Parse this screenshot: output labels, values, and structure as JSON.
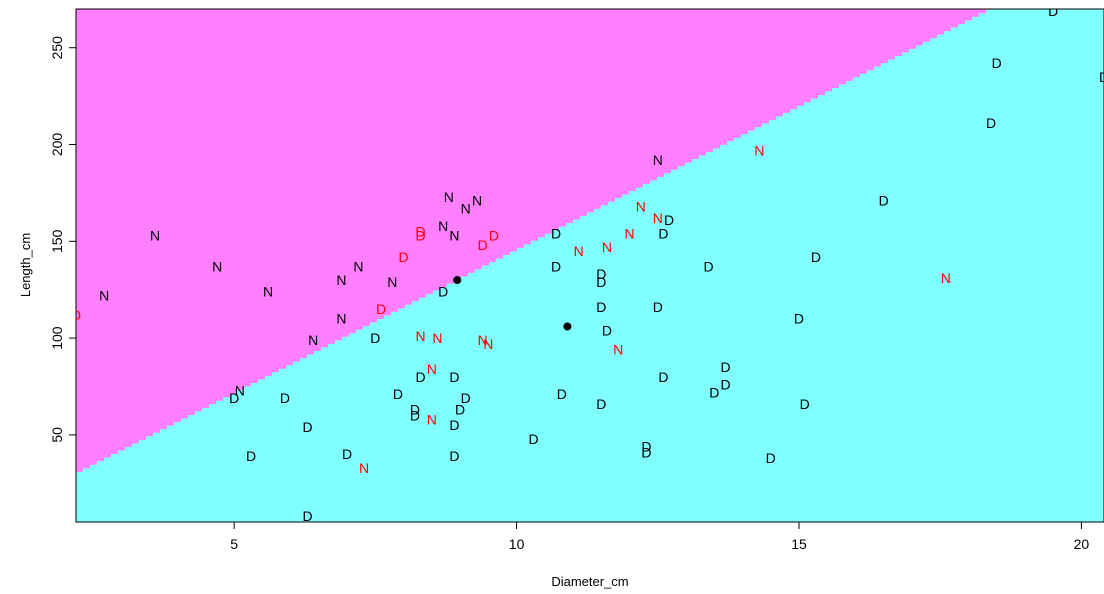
{
  "chart_data": {
    "type": "scatter",
    "title": "",
    "xlabel": "Diameter_cm",
    "ylabel": "Length_cm",
    "xlim": [
      2.2,
      20.4
    ],
    "ylim": [
      5,
      270
    ],
    "x_ticks": [
      5,
      10,
      15,
      20
    ],
    "y_ticks": [
      50,
      100,
      150,
      200,
      250
    ],
    "grid": false,
    "legend": "none",
    "colors": {
      "region_N": "#ff7fff",
      "region_D": "#7fffff",
      "correct": "#000000",
      "misclassified": "#ff0000",
      "centroid": "#000000"
    },
    "boundary": {
      "x": [
        2.2,
        18.4
      ],
      "y": [
        30,
        270
      ]
    },
    "centroids": [
      {
        "x": 8.95,
        "y": 130
      },
      {
        "x": 10.9,
        "y": 106
      }
    ],
    "points": [
      {
        "x": 2.2,
        "y": 112,
        "label": "D",
        "misclassified": true
      },
      {
        "x": 2.7,
        "y": 122,
        "label": "N",
        "misclassified": false
      },
      {
        "x": 3.6,
        "y": 153,
        "label": "N",
        "misclassified": false
      },
      {
        "x": 4.7,
        "y": 137,
        "label": "N",
        "misclassified": false
      },
      {
        "x": 5.0,
        "y": 69,
        "label": "D",
        "misclassified": false
      },
      {
        "x": 5.1,
        "y": 73,
        "label": "N",
        "misclassified": false
      },
      {
        "x": 5.3,
        "y": 39,
        "label": "D",
        "misclassified": false
      },
      {
        "x": 5.6,
        "y": 124,
        "label": "N",
        "misclassified": false
      },
      {
        "x": 5.9,
        "y": 69,
        "label": "D",
        "misclassified": false
      },
      {
        "x": 6.3,
        "y": 54,
        "label": "D",
        "misclassified": false
      },
      {
        "x": 6.3,
        "y": 8,
        "label": "D",
        "misclassified": false
      },
      {
        "x": 6.4,
        "y": 99,
        "label": "N",
        "misclassified": false
      },
      {
        "x": 6.9,
        "y": 110,
        "label": "N",
        "misclassified": false
      },
      {
        "x": 6.9,
        "y": 130,
        "label": "N",
        "misclassified": false
      },
      {
        "x": 7.0,
        "y": 40,
        "label": "D",
        "misclassified": false
      },
      {
        "x": 7.2,
        "y": 137,
        "label": "N",
        "misclassified": false
      },
      {
        "x": 7.3,
        "y": 33,
        "label": "N",
        "misclassified": true
      },
      {
        "x": 7.5,
        "y": 100,
        "label": "D",
        "misclassified": false
      },
      {
        "x": 7.6,
        "y": 115,
        "label": "D",
        "misclassified": true
      },
      {
        "x": 7.8,
        "y": 129,
        "label": "N",
        "misclassified": false
      },
      {
        "x": 7.9,
        "y": 71,
        "label": "D",
        "misclassified": false
      },
      {
        "x": 8.0,
        "y": 142,
        "label": "D",
        "misclassified": true
      },
      {
        "x": 8.2,
        "y": 63,
        "label": "D",
        "misclassified": false
      },
      {
        "x": 8.2,
        "y": 60,
        "label": "D",
        "misclassified": false
      },
      {
        "x": 8.3,
        "y": 155,
        "label": "D",
        "misclassified": true
      },
      {
        "x": 8.3,
        "y": 153,
        "label": "D",
        "misclassified": true
      },
      {
        "x": 8.3,
        "y": 101,
        "label": "N",
        "misclassified": true
      },
      {
        "x": 8.3,
        "y": 80,
        "label": "D",
        "misclassified": false
      },
      {
        "x": 8.5,
        "y": 84,
        "label": "N",
        "misclassified": true
      },
      {
        "x": 8.5,
        "y": 58,
        "label": "N",
        "misclassified": true
      },
      {
        "x": 8.6,
        "y": 100,
        "label": "N",
        "misclassified": true
      },
      {
        "x": 8.7,
        "y": 124,
        "label": "D",
        "misclassified": false
      },
      {
        "x": 8.7,
        "y": 158,
        "label": "N",
        "misclassified": false
      },
      {
        "x": 8.8,
        "y": 173,
        "label": "N",
        "misclassified": false
      },
      {
        "x": 8.9,
        "y": 153,
        "label": "N",
        "misclassified": false
      },
      {
        "x": 8.9,
        "y": 80,
        "label": "D",
        "misclassified": false
      },
      {
        "x": 8.9,
        "y": 55,
        "label": "D",
        "misclassified": false
      },
      {
        "x": 8.9,
        "y": 39,
        "label": "D",
        "misclassified": false
      },
      {
        "x": 9.0,
        "y": 63,
        "label": "D",
        "misclassified": false
      },
      {
        "x": 9.1,
        "y": 69,
        "label": "D",
        "misclassified": false
      },
      {
        "x": 9.1,
        "y": 167,
        "label": "N",
        "misclassified": false
      },
      {
        "x": 9.3,
        "y": 171,
        "label": "N",
        "misclassified": false
      },
      {
        "x": 9.4,
        "y": 99,
        "label": "N",
        "misclassified": true
      },
      {
        "x": 9.4,
        "y": 148,
        "label": "D",
        "misclassified": true
      },
      {
        "x": 9.5,
        "y": 97,
        "label": "N",
        "misclassified": true
      },
      {
        "x": 9.6,
        "y": 153,
        "label": "D",
        "misclassified": true
      },
      {
        "x": 10.3,
        "y": 48,
        "label": "D",
        "misclassified": false
      },
      {
        "x": 10.7,
        "y": 154,
        "label": "D",
        "misclassified": false
      },
      {
        "x": 10.7,
        "y": 137,
        "label": "D",
        "misclassified": false
      },
      {
        "x": 10.8,
        "y": 71,
        "label": "D",
        "misclassified": false
      },
      {
        "x": 11.1,
        "y": 145,
        "label": "N",
        "misclassified": true
      },
      {
        "x": 11.5,
        "y": 133,
        "label": "D",
        "misclassified": false
      },
      {
        "x": 11.5,
        "y": 129,
        "label": "D",
        "misclassified": false
      },
      {
        "x": 11.5,
        "y": 116,
        "label": "D",
        "misclassified": false
      },
      {
        "x": 11.5,
        "y": 66,
        "label": "D",
        "misclassified": false
      },
      {
        "x": 11.6,
        "y": 104,
        "label": "D",
        "misclassified": false
      },
      {
        "x": 11.6,
        "y": 147,
        "label": "N",
        "misclassified": true
      },
      {
        "x": 11.8,
        "y": 94,
        "label": "N",
        "misclassified": true
      },
      {
        "x": 12.0,
        "y": 154,
        "label": "N",
        "misclassified": true
      },
      {
        "x": 12.2,
        "y": 168,
        "label": "N",
        "misclassified": true
      },
      {
        "x": 12.3,
        "y": 44,
        "label": "D",
        "misclassified": false
      },
      {
        "x": 12.3,
        "y": 41,
        "label": "D",
        "misclassified": false
      },
      {
        "x": 12.5,
        "y": 192,
        "label": "N",
        "misclassified": false
      },
      {
        "x": 12.5,
        "y": 116,
        "label": "D",
        "misclassified": false
      },
      {
        "x": 12.5,
        "y": 162,
        "label": "N",
        "misclassified": true
      },
      {
        "x": 12.6,
        "y": 154,
        "label": "D",
        "misclassified": false
      },
      {
        "x": 12.6,
        "y": 80,
        "label": "D",
        "misclassified": false
      },
      {
        "x": 12.7,
        "y": 161,
        "label": "D",
        "misclassified": false
      },
      {
        "x": 13.4,
        "y": 137,
        "label": "D",
        "misclassified": false
      },
      {
        "x": 13.5,
        "y": 72,
        "label": "D",
        "misclassified": false
      },
      {
        "x": 13.7,
        "y": 85,
        "label": "D",
        "misclassified": false
      },
      {
        "x": 13.7,
        "y": 76,
        "label": "D",
        "misclassified": false
      },
      {
        "x": 14.3,
        "y": 197,
        "label": "N",
        "misclassified": true
      },
      {
        "x": 14.5,
        "y": 38,
        "label": "D",
        "misclassified": false
      },
      {
        "x": 15.0,
        "y": 110,
        "label": "D",
        "misclassified": false
      },
      {
        "x": 15.1,
        "y": 66,
        "label": "D",
        "misclassified": false
      },
      {
        "x": 15.3,
        "y": 142,
        "label": "D",
        "misclassified": false
      },
      {
        "x": 16.5,
        "y": 171,
        "label": "D",
        "misclassified": false
      },
      {
        "x": 17.6,
        "y": 131,
        "label": "N",
        "misclassified": true
      },
      {
        "x": 18.4,
        "y": 211,
        "label": "D",
        "misclassified": false
      },
      {
        "x": 18.5,
        "y": 242,
        "label": "D",
        "misclassified": false
      },
      {
        "x": 19.5,
        "y": 269,
        "label": "D",
        "misclassified": false
      },
      {
        "x": 20.4,
        "y": 235,
        "label": "D",
        "misclassified": false
      }
    ]
  }
}
